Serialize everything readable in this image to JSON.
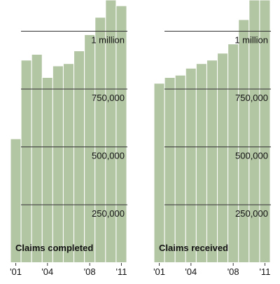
{
  "colors": {
    "bar_fill": "#b3c6a4",
    "bar_stroke": "#ffffff",
    "gridline": "#333333",
    "text": "#111111",
    "background": "#ffffff"
  },
  "chart_data": [
    {
      "type": "bar",
      "title": "Claims completed",
      "categories": [
        "2001",
        "2002",
        "2003",
        "2004",
        "2005",
        "2006",
        "2007",
        "2008",
        "2009",
        "2010",
        "2011"
      ],
      "x_tick_labels": [
        "'01",
        "",
        "",
        "'04",
        "",
        "",
        "",
        "'08",
        "",
        "",
        "'11"
      ],
      "values": [
        535000,
        875000,
        900000,
        800000,
        850000,
        860000,
        915000,
        985000,
        1060000,
        1145000,
        1110000
      ],
      "ylim": [
        0,
        1300000
      ],
      "yticks": [
        250000,
        500000,
        750000,
        1000000
      ],
      "ytick_labels": [
        "250,000",
        "500,000",
        "750,000",
        "1 million"
      ],
      "grid": true
    },
    {
      "type": "bar",
      "title": "Claims received",
      "categories": [
        "2001",
        "2002",
        "2003",
        "2004",
        "2005",
        "2006",
        "2007",
        "2008",
        "2009",
        "2010",
        "2011"
      ],
      "x_tick_labels": [
        "'01",
        "",
        "",
        "'04",
        "",
        "",
        "",
        "'08",
        "",
        "",
        "'11"
      ],
      "values": [
        775000,
        800000,
        810000,
        840000,
        860000,
        875000,
        905000,
        945000,
        1050000,
        1240000,
        1300000
      ],
      "ylim": [
        0,
        1300000
      ],
      "yticks": [
        250000,
        500000,
        750000,
        1000000
      ],
      "ytick_labels": [
        "250,000",
        "500,000",
        "750,000",
        "1 million"
      ],
      "grid": true
    }
  ]
}
